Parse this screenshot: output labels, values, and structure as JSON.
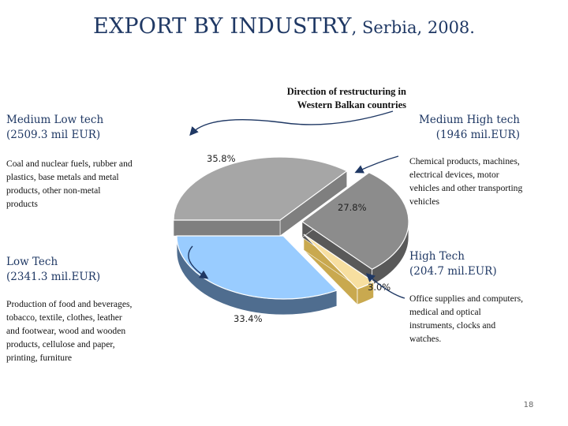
{
  "title": {
    "main": "EXPORT BY INDUSTRY",
    "sub": ", Serbia, 2008."
  },
  "note": {
    "line1": "Direction of restructuring in",
    "line2": "Western Balkan countries"
  },
  "labels": {
    "medium_low": {
      "name": "Medium Low tech",
      "value": "(2509.3 mil EUR)",
      "desc": [
        "Coal and nuclear fuels, rubber and",
        "plastics, base metals and metal",
        "products, other non-metal",
        "products"
      ]
    },
    "medium_high": {
      "name": "Medium High tech",
      "value": "(1946 mil.EUR)",
      "desc": [
        "Chemical products, machines,",
        "electrical devices, motor",
        "vehicles and other transporting",
        "vehicles"
      ]
    },
    "low": {
      "name": "Low Tech",
      "value": "(2341.3 mil.EUR)",
      "desc": [
        "Production of food and beverages,",
        "tobacco, textile, clothes, leather",
        "and footwear, wood and wooden",
        "products, cellulose and paper,",
        "printing, furniture"
      ]
    },
    "high": {
      "name": "High Tech",
      "value": "(204.7 mil.EUR)",
      "desc": [
        "Office supplies and computers,",
        "medical and optical",
        "instruments, clocks and",
        "watches."
      ]
    }
  },
  "chart_data": {
    "type": "pie",
    "title": "EXPORT BY INDUSTRY, Serbia, 2008.",
    "slices": [
      {
        "name": "Medium Low tech",
        "value": 35.8,
        "label": "35.8%",
        "color": "#a6a6a6"
      },
      {
        "name": "Medium High tech",
        "value": 27.8,
        "label": "27.8%",
        "color": "#8c8c8c"
      },
      {
        "name": "High Tech",
        "value": 3.0,
        "label": "3.0%",
        "color": "#f7dfa0"
      },
      {
        "name": "Low Tech",
        "value": 33.4,
        "label": "33.4%",
        "color": "#99ccff"
      }
    ],
    "side_colors": [
      "#7f7f7f",
      "#595959",
      "#c9a94f",
      "#4f6d8f"
    ],
    "units": "mil EUR",
    "values_mil_eur": [
      2509.3,
      1946,
      204.7,
      2341.3
    ],
    "three_d": true
  },
  "page_number": "18"
}
